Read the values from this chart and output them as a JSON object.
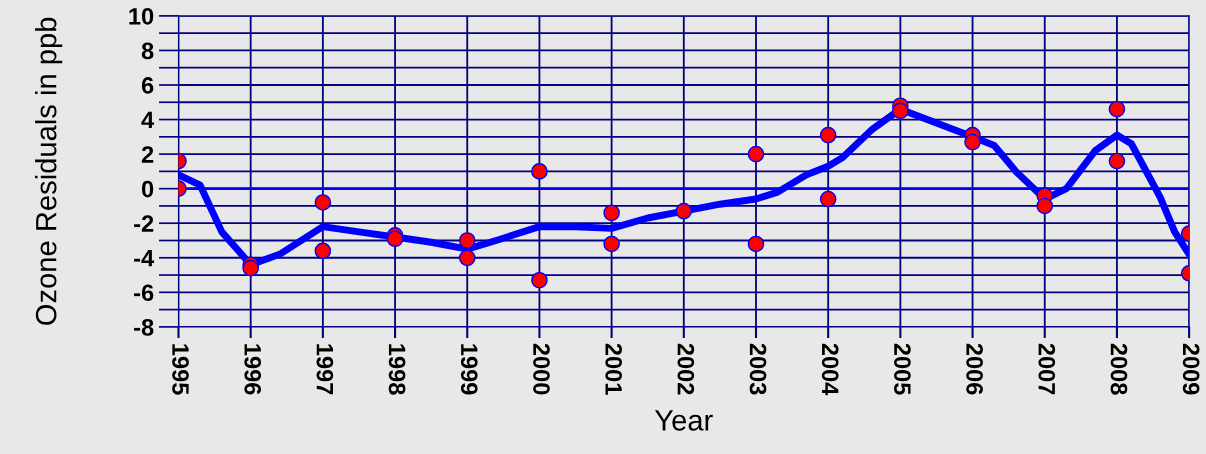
{
  "chart_data": {
    "type": "scatter",
    "xlabel": "Year",
    "ylabel": "Ozone Residuals in ppb",
    "xlim": [
      1995,
      2009
    ],
    "xticks": [
      1995,
      1996,
      1997,
      1998,
      1999,
      2000,
      2001,
      2002,
      2003,
      2004,
      2005,
      2006,
      2007,
      2008,
      2009
    ],
    "ylim": [
      -8,
      10
    ],
    "yticks": [
      -8,
      {
        "value": -7,
        "label": null
      },
      -6,
      {
        "value": -5,
        "label": null
      },
      -4,
      {
        "value": -3,
        "label": null
      },
      -2,
      {
        "value": -1,
        "label": null
      },
      0,
      {
        "value": 1,
        "label": null
      },
      2,
      {
        "value": 3,
        "label": null
      },
      4,
      {
        "value": 5,
        "label": null
      },
      6,
      {
        "value": 7,
        "label": null
      },
      8,
      {
        "value": 9,
        "label": null
      },
      10
    ],
    "grid": true,
    "marker": "circle",
    "ref_lines": [
      {
        "axis": "y",
        "value": 0,
        "color": "#0000ff"
      }
    ],
    "series": [
      {
        "type": "line",
        "marker": "none",
        "color": "#0000ff",
        "x": [
          1995,
          1995.3,
          1995.6,
          1996,
          1996.4,
          1997,
          1997.5,
          1998,
          1998.5,
          1999,
          1999.4,
          2000,
          2000.5,
          2001,
          2001.5,
          2002,
          2002.5,
          2003,
          2003.3,
          2003.7,
          2004,
          2004.2,
          2004.6,
          2005,
          2005.5,
          2006,
          2006.3,
          2006.6,
          2007,
          2007.3,
          2007.7,
          2008,
          2008.2,
          2008.6,
          2008.8,
          2009
        ],
        "values": [
          0.8,
          0.2,
          -2.5,
          -4.4,
          -3.8,
          -2.2,
          -2.5,
          -2.8,
          -3.1,
          -3.5,
          -3.0,
          -2.2,
          -2.2,
          -2.3,
          -1.7,
          -1.3,
          -0.9,
          -0.6,
          -0.2,
          0.8,
          1.3,
          1.8,
          3.4,
          4.6,
          3.8,
          3.0,
          2.5,
          1.0,
          -0.6,
          0.0,
          2.2,
          3.1,
          2.6,
          -0.5,
          -2.5,
          -3.8
        ]
      },
      {
        "color": "#ff0000",
        "x": [
          1995,
          1995,
          1996,
          1996,
          1997,
          1997,
          1998,
          1998,
          1999,
          1999,
          2000,
          2000,
          2001,
          2001,
          2002,
          2003,
          2003,
          2004,
          2004,
          2005,
          2005,
          2006,
          2006,
          2007,
          2007,
          2008,
          2008,
          2009,
          2009
        ],
        "values": [
          1.6,
          0.0,
          -4.4,
          -4.6,
          -0.8,
          -3.6,
          -2.7,
          -2.9,
          -3.0,
          -4.0,
          1.0,
          -5.3,
          -1.4,
          -3.2,
          -1.3,
          2.0,
          -3.2,
          3.1,
          -0.6,
          4.8,
          4.5,
          3.1,
          2.7,
          -0.4,
          -1.0,
          4.6,
          1.6,
          -2.6,
          -4.9
        ]
      }
    ]
  }
}
